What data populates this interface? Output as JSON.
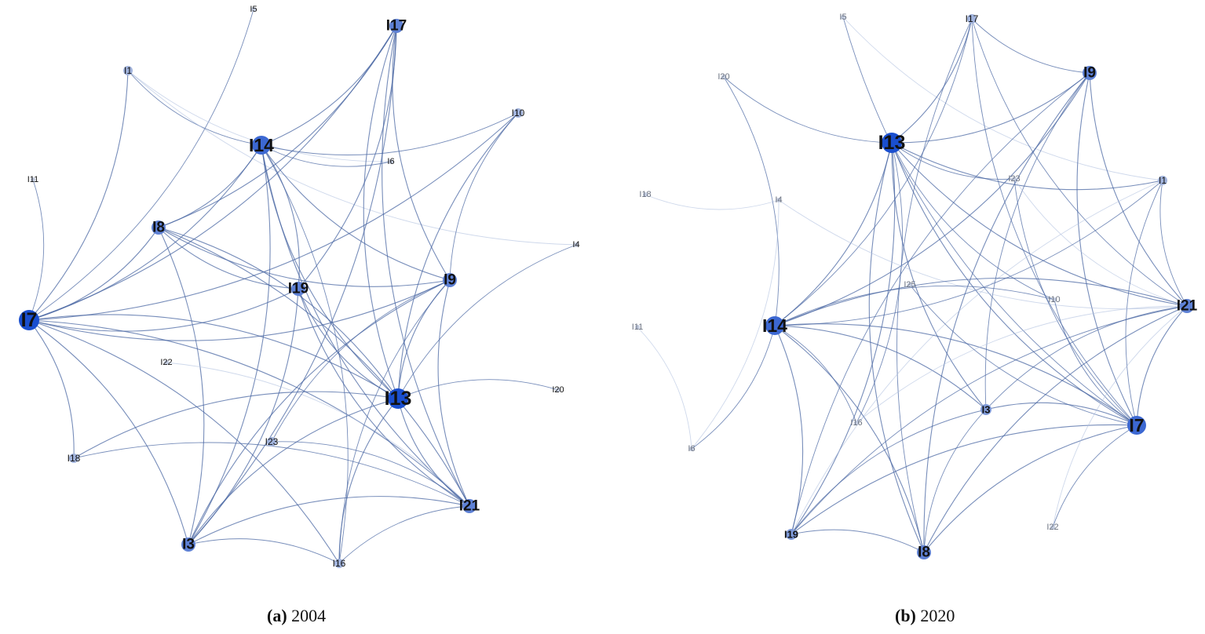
{
  "panels": [
    {
      "id": "a",
      "caption_letter": "(a)",
      "caption_text": " 2004",
      "nodes": [
        {
          "id": "I5",
          "size": 0
        },
        {
          "id": "I1",
          "size": 1
        },
        {
          "id": "I17",
          "size": 3
        },
        {
          "id": "I10",
          "size": 1
        },
        {
          "id": "I14",
          "size": 4
        },
        {
          "id": "I6",
          "size": 0
        },
        {
          "id": "I11",
          "size": 0
        },
        {
          "id": "I8",
          "size": 3
        },
        {
          "id": "I4",
          "size": 0
        },
        {
          "id": "I9",
          "size": 3
        },
        {
          "id": "I19",
          "size": 3
        },
        {
          "id": "I7",
          "size": 5
        },
        {
          "id": "I22",
          "size": 0
        },
        {
          "id": "I13",
          "size": 5
        },
        {
          "id": "I20",
          "size": 0
        },
        {
          "id": "I23",
          "size": 1
        },
        {
          "id": "I18",
          "size": 1
        },
        {
          "id": "I21",
          "size": 3
        },
        {
          "id": "I3",
          "size": 3
        },
        {
          "id": "I16",
          "size": 1
        }
      ],
      "edges": [
        [
          "I5",
          "I7"
        ],
        [
          "I1",
          "I7"
        ],
        [
          "I1",
          "I14"
        ],
        [
          "I1",
          "I4"
        ],
        [
          "I1",
          "I6"
        ],
        [
          "I11",
          "I7"
        ],
        [
          "I17",
          "I7"
        ],
        [
          "I17",
          "I14"
        ],
        [
          "I17",
          "I8"
        ],
        [
          "I17",
          "I9"
        ],
        [
          "I17",
          "I13"
        ],
        [
          "I17",
          "I21"
        ],
        [
          "I17",
          "I3"
        ],
        [
          "I17",
          "I19"
        ],
        [
          "I14",
          "I7"
        ],
        [
          "I14",
          "I8"
        ],
        [
          "I14",
          "I9"
        ],
        [
          "I14",
          "I13"
        ],
        [
          "I14",
          "I19"
        ],
        [
          "I14",
          "I21"
        ],
        [
          "I14",
          "I3"
        ],
        [
          "I14",
          "I10"
        ],
        [
          "I14",
          "I16"
        ],
        [
          "I14",
          "I6"
        ],
        [
          "I7",
          "I8"
        ],
        [
          "I7",
          "I9"
        ],
        [
          "I7",
          "I13"
        ],
        [
          "I7",
          "I19"
        ],
        [
          "I7",
          "I21"
        ],
        [
          "I7",
          "I3"
        ],
        [
          "I7",
          "I16"
        ],
        [
          "I7",
          "I10"
        ],
        [
          "I7",
          "I18"
        ],
        [
          "I8",
          "I9"
        ],
        [
          "I8",
          "I13"
        ],
        [
          "I8",
          "I3"
        ],
        [
          "I8",
          "I19"
        ],
        [
          "I8",
          "I21"
        ],
        [
          "I9",
          "I13"
        ],
        [
          "I9",
          "I21"
        ],
        [
          "I9",
          "I3"
        ],
        [
          "I9",
          "I10"
        ],
        [
          "I9",
          "I16"
        ],
        [
          "I19",
          "I13"
        ],
        [
          "I19",
          "I21"
        ],
        [
          "I19",
          "I3"
        ],
        [
          "I13",
          "I21"
        ],
        [
          "I13",
          "I3"
        ],
        [
          "I13",
          "I16"
        ],
        [
          "I13",
          "I20"
        ],
        [
          "I13",
          "I18"
        ],
        [
          "I13",
          "I4"
        ],
        [
          "I22",
          "I21"
        ],
        [
          "I23",
          "I21"
        ],
        [
          "I23",
          "I9"
        ],
        [
          "I3",
          "I16"
        ],
        [
          "I3",
          "I21"
        ],
        [
          "I21",
          "I16"
        ],
        [
          "I10",
          "I13"
        ],
        [
          "I18",
          "I21"
        ]
      ]
    },
    {
      "id": "b",
      "caption_letter": "(b)",
      "caption_text": " 2020",
      "nodes": [
        {
          "id": "I5",
          "size": 0
        },
        {
          "id": "I17",
          "size": 1
        },
        {
          "id": "I9",
          "size": 3
        },
        {
          "id": "I20",
          "size": 0
        },
        {
          "id": "I13",
          "size": 5
        },
        {
          "id": "I23",
          "size": 0
        },
        {
          "id": "I1",
          "size": 1
        },
        {
          "id": "I18",
          "size": 0
        },
        {
          "id": "I4",
          "size": 0
        },
        {
          "id": "I25",
          "size": 0
        },
        {
          "id": "I10",
          "size": 0
        },
        {
          "id": "I21",
          "size": 3
        },
        {
          "id": "I11",
          "size": 0
        },
        {
          "id": "I14",
          "size": 4
        },
        {
          "id": "I3",
          "size": 2
        },
        {
          "id": "I16",
          "size": 0
        },
        {
          "id": "I7",
          "size": 4
        },
        {
          "id": "I6",
          "size": 0
        },
        {
          "id": "I22",
          "size": 0
        },
        {
          "id": "I19",
          "size": 2
        },
        {
          "id": "I8",
          "size": 3
        }
      ],
      "edges": [
        [
          "I5",
          "I7"
        ],
        [
          "I5",
          "I1"
        ],
        [
          "I17",
          "I13"
        ],
        [
          "I17",
          "I9"
        ],
        [
          "I17",
          "I7"
        ],
        [
          "I17",
          "I14"
        ],
        [
          "I17",
          "I8"
        ],
        [
          "I17",
          "I21"
        ],
        [
          "I9",
          "I13"
        ],
        [
          "I9",
          "I14"
        ],
        [
          "I9",
          "I7"
        ],
        [
          "I9",
          "I21"
        ],
        [
          "I9",
          "I19"
        ],
        [
          "I9",
          "I8"
        ],
        [
          "I9",
          "I3"
        ],
        [
          "I20",
          "I13"
        ],
        [
          "I20",
          "I14"
        ],
        [
          "I13",
          "I14"
        ],
        [
          "I13",
          "I7"
        ],
        [
          "I13",
          "I21"
        ],
        [
          "I13",
          "I3"
        ],
        [
          "I13",
          "I8"
        ],
        [
          "I13",
          "I19"
        ],
        [
          "I13",
          "I16"
        ],
        [
          "I13",
          "I10"
        ],
        [
          "I13",
          "I1"
        ],
        [
          "I13",
          "I23"
        ],
        [
          "I23",
          "I7"
        ],
        [
          "I23",
          "I21"
        ],
        [
          "I1",
          "I7"
        ],
        [
          "I1",
          "I14"
        ],
        [
          "I1",
          "I19"
        ],
        [
          "I1",
          "I21"
        ],
        [
          "I18",
          "I4"
        ],
        [
          "I4",
          "I6"
        ],
        [
          "I4",
          "I21"
        ],
        [
          "I11",
          "I6"
        ],
        [
          "I14",
          "I7"
        ],
        [
          "I14",
          "I21"
        ],
        [
          "I14",
          "I3"
        ],
        [
          "I14",
          "I8"
        ],
        [
          "I14",
          "I19"
        ],
        [
          "I14",
          "I16"
        ],
        [
          "I14",
          "I10"
        ],
        [
          "I21",
          "I7"
        ],
        [
          "I21",
          "I8"
        ],
        [
          "I21",
          "I19"
        ],
        [
          "I21",
          "I3"
        ],
        [
          "I21",
          "I16"
        ],
        [
          "I3",
          "I7"
        ],
        [
          "I3",
          "I19"
        ],
        [
          "I3",
          "I8"
        ],
        [
          "I7",
          "I8"
        ],
        [
          "I7",
          "I19"
        ],
        [
          "I7",
          "I22"
        ],
        [
          "I6",
          "I14"
        ],
        [
          "I19",
          "I8"
        ],
        [
          "I25",
          "I7"
        ],
        [
          "I10",
          "I7"
        ],
        [
          "I22",
          "I21"
        ]
      ]
    }
  ],
  "colors": {
    "node_max": "#1a4fcf",
    "node_min": "#c3ccdf",
    "edge": "#4a67a3",
    "edge_light": "#aebedd"
  }
}
